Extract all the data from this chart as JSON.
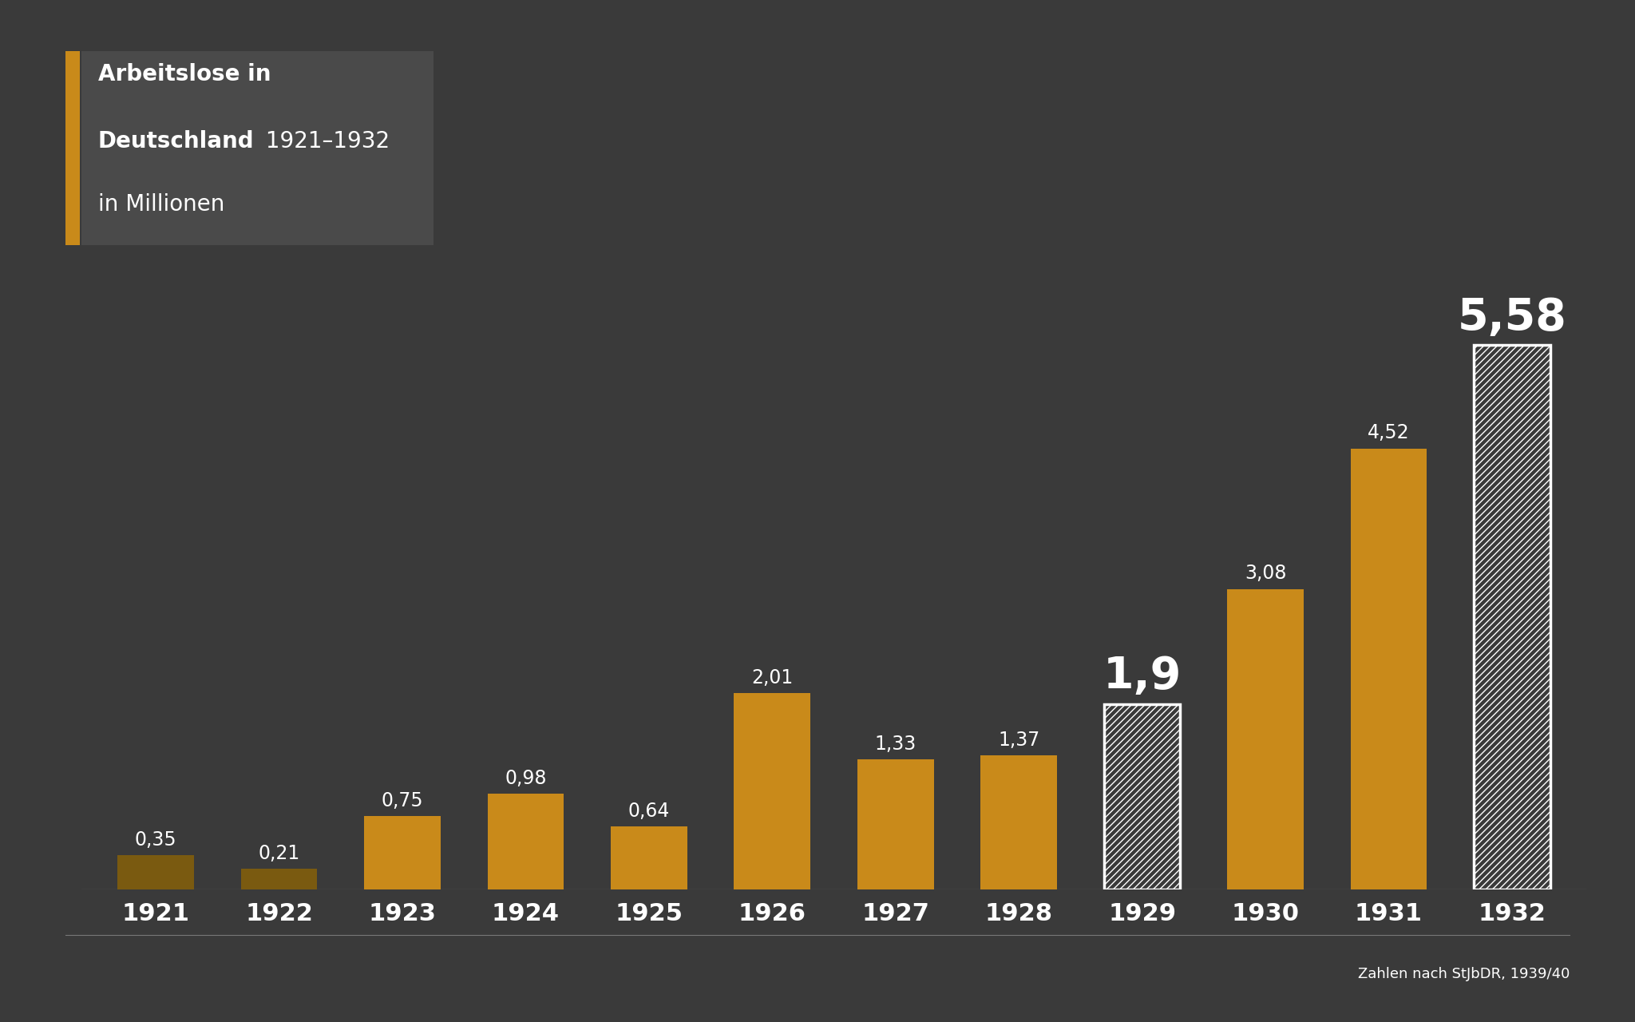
{
  "years": [
    "1921",
    "1922",
    "1923",
    "1924",
    "1925",
    "1926",
    "1927",
    "1928",
    "1929",
    "1930",
    "1931",
    "1932"
  ],
  "values": [
    0.35,
    0.21,
    0.75,
    0.98,
    0.64,
    2.01,
    1.33,
    1.37,
    1.9,
    3.08,
    4.52,
    5.58
  ],
  "labels": [
    "0,35",
    "0,21",
    "0,75",
    "0,98",
    "0,64",
    "2,01",
    "1,33",
    "1,37",
    "1,9",
    "3,08",
    "4,52",
    "5,58"
  ],
  "bar_colors": [
    "#7A5A10",
    "#7A5A10",
    "#C98A1A",
    "#C98A1A",
    "#C98A1A",
    "#C98A1A",
    "#C98A1A",
    "#C98A1A",
    "hatched",
    "#C98A1A",
    "#C98A1A",
    "hatched"
  ],
  "bar_color_hatched_face": "#3a3a3a",
  "bar_color_hatched_edge": "#ffffff",
  "background_color": "#3a3a3a",
  "title_box_bg": "#4a4a4a",
  "text_color": "#ffffff",
  "accent_color": "#C98A1A",
  "title_line1": "Arbeitslose in",
  "title_line2_bold": "Deutschland",
  "title_line2_normal": " 1921–1932",
  "title_line3": "in Millionen",
  "source_text": "Zahlen nach StJbDR, 1939/40",
  "hatched_indices": [
    8,
    11
  ],
  "large_label_indices": [
    8,
    11
  ],
  "ylim": [
    0,
    6.5
  ],
  "bar_width": 0.62,
  "title_fontsize": 20,
  "label_fontsize": 17,
  "large_label_fontsize": 40,
  "year_fontsize": 22,
  "source_fontsize": 13
}
